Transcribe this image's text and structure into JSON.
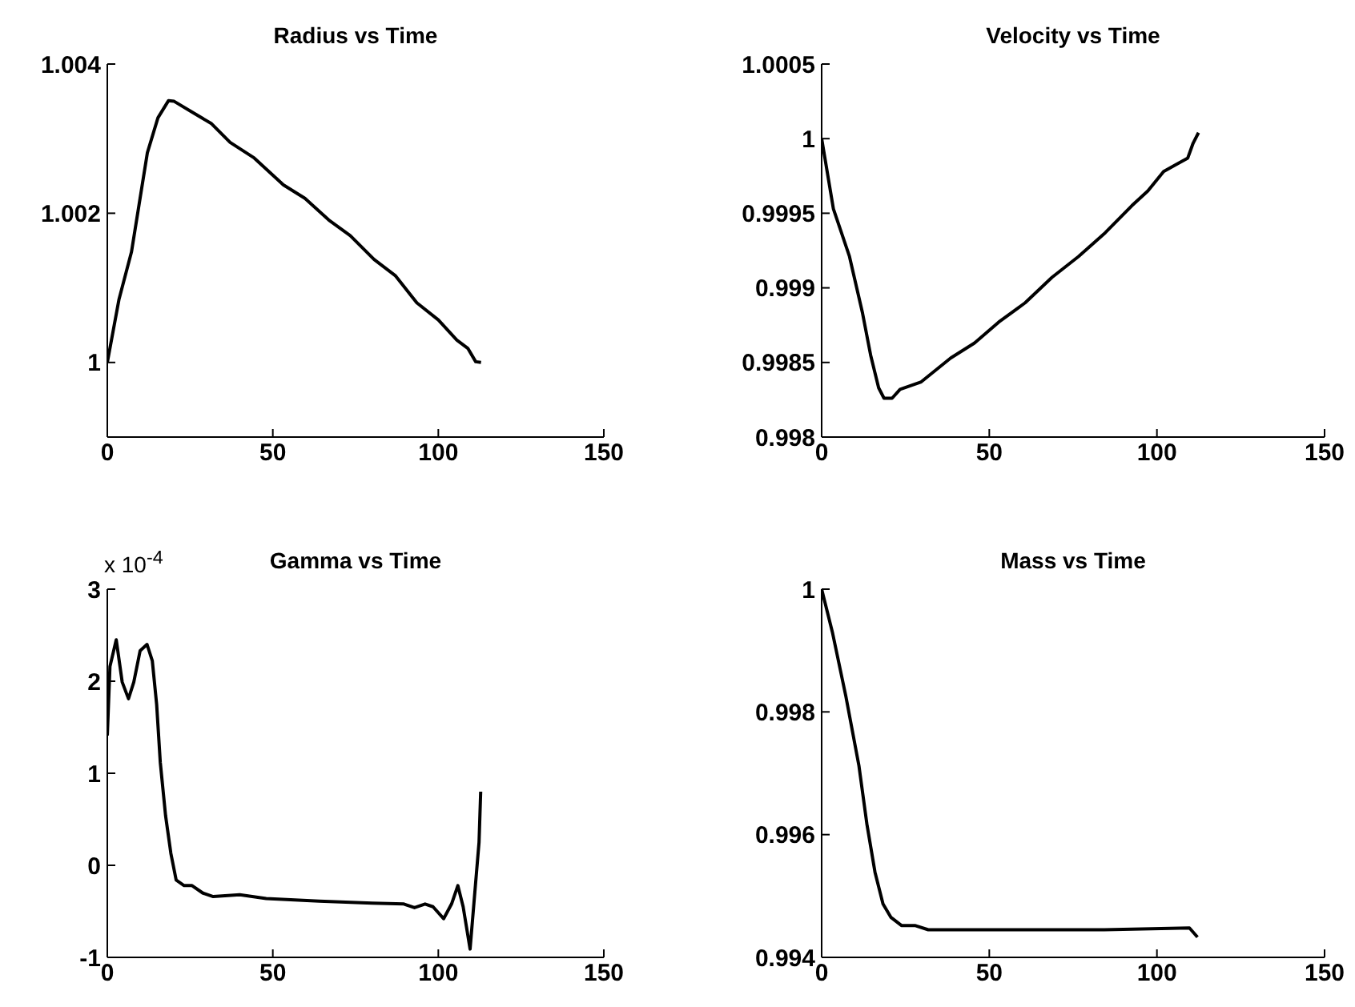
{
  "chart_data": [
    {
      "type": "line",
      "title": "Radius vs Time",
      "color": "#000000",
      "grid": false,
      "xlim": [
        0,
        150
      ],
      "xticks": [
        0,
        50,
        100,
        150
      ],
      "ylim": [
        0.999,
        1.004
      ],
      "yticks": [
        1,
        1.002,
        1.004
      ],
      "x": [
        0,
        3.5,
        7.3,
        12.1,
        15.3,
        18.5,
        20.2,
        25.8,
        31.5,
        37.1,
        44.4,
        53.2,
        59.7,
        66.9,
        73.4,
        80.6,
        87.1,
        93.5,
        100,
        105.6,
        108.9,
        111.3,
        112.9
      ],
      "values": [
        1.0,
        1.00084,
        1.00148,
        1.00281,
        1.00328,
        1.00351,
        1.0035,
        1.00335,
        1.0032,
        1.00295,
        1.00274,
        1.00238,
        1.0022,
        1.00191,
        1.0017,
        1.00138,
        1.00116,
        1.0008,
        1.00057,
        1.0003,
        1.00019,
        1.00001,
        1.0
      ]
    },
    {
      "type": "line",
      "title": "Velocity vs Time",
      "color": "#000000",
      "grid": false,
      "xlim": [
        0,
        150
      ],
      "xticks": [
        0,
        50,
        100,
        150
      ],
      "ylim": [
        0.998,
        1.0005
      ],
      "yticks": [
        0.998,
        0.9985,
        0.999,
        0.9995,
        1,
        1.0005
      ],
      "x": [
        0,
        3.5,
        8.3,
        12.2,
        14.6,
        17,
        18.6,
        21,
        23.4,
        29.7,
        38.5,
        45.6,
        52.8,
        60.7,
        68.7,
        76.6,
        84.6,
        92.5,
        97.3,
        102,
        105.2,
        109.2,
        110.8,
        112.4
      ],
      "values": [
        1.0,
        0.99953,
        0.99921,
        0.99883,
        0.99855,
        0.99833,
        0.99826,
        0.99826,
        0.99832,
        0.99837,
        0.99853,
        0.99863,
        0.99877,
        0.9989,
        0.99907,
        0.99921,
        0.99937,
        0.99955,
        0.99965,
        0.99978,
        0.99982,
        0.99987,
        0.99997,
        1.00004
      ]
    },
    {
      "type": "line",
      "title": "Gamma vs Time",
      "annotations": [
        "x 10$^{-4}$"
      ],
      "color": "#000000",
      "grid": false,
      "xlim": [
        0,
        150
      ],
      "xticks": [
        0,
        50,
        100,
        150
      ],
      "ylim": [
        -1,
        3
      ],
      "yticks": [
        -1,
        0,
        1,
        2,
        3
      ],
      "x": [
        0,
        0.8,
        2.7,
        4.5,
        6.4,
        8,
        9.9,
        12,
        13.6,
        14.9,
        16,
        17.6,
        19.2,
        20.8,
        23.2,
        25.6,
        28.8,
        32,
        40,
        48,
        64,
        80,
        89.6,
        92.8,
        96,
        98.4,
        101.6,
        104,
        105.9,
        107.5,
        109.6,
        111.2,
        112.3,
        112.8
      ],
      "values": [
        1.41,
        2.16,
        2.45,
        1.99,
        1.81,
        1.99,
        2.33,
        2.4,
        2.22,
        1.75,
        1.12,
        0.54,
        0.13,
        -0.16,
        -0.22,
        -0.22,
        -0.3,
        -0.34,
        -0.32,
        -0.36,
        -0.39,
        -0.41,
        -0.42,
        -0.46,
        -0.42,
        -0.45,
        -0.58,
        -0.42,
        -0.22,
        -0.45,
        -0.91,
        -0.22,
        0.25,
        0.8
      ]
    },
    {
      "type": "line",
      "title": "Mass vs Time",
      "color": "#000000",
      "grid": false,
      "xlim": [
        0,
        150
      ],
      "xticks": [
        0,
        50,
        100,
        150
      ],
      "ylim": [
        0.994,
        1
      ],
      "yticks": [
        0.994,
        0.996,
        0.998,
        1
      ],
      "x": [
        0,
        3.2,
        7.2,
        11.1,
        13.5,
        15.9,
        18.3,
        20.7,
        23.8,
        27.8,
        31.8,
        52.5,
        84.3,
        109.7,
        112.1
      ],
      "values": [
        1.0,
        0.9993,
        0.99826,
        0.99713,
        0.99617,
        0.99539,
        0.99487,
        0.99465,
        0.99452,
        0.99452,
        0.99445,
        0.99445,
        0.99445,
        0.99448,
        0.99433
      ]
    }
  ]
}
